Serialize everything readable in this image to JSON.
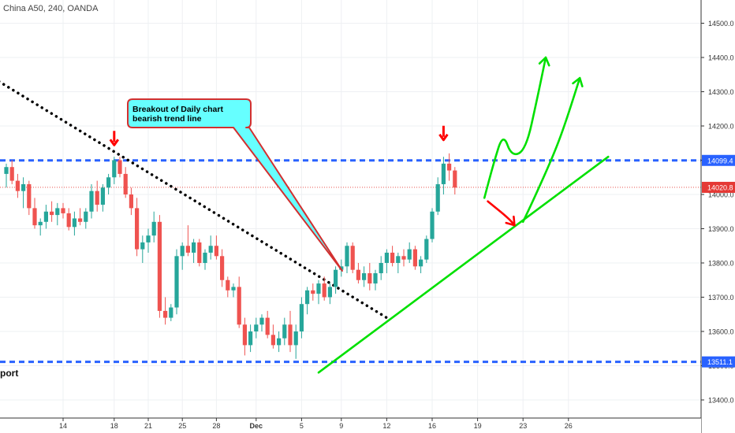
{
  "header": {
    "symbol_info": "China A50, 240, OANDA"
  },
  "annotations": {
    "callout": [
      "Breakout of Daily chart",
      "bearish trend line"
    ],
    "support_label": "port"
  },
  "colors": {
    "up": "#26a69a",
    "down": "#ef5350",
    "level": "#2962ff",
    "trend": "#00e000",
    "callout_fill": "#66ffff",
    "callout_border": "#d32f2f",
    "arrow_red": "#ff0000",
    "last_price": "#e53935"
  },
  "chart_data": {
    "type": "candlestick",
    "title": "China A50, 240, OANDA",
    "ylim": [
      13360,
      14560
    ],
    "y_ticks": [
      "14500.0",
      "14400.0",
      "14300.0",
      "14200.0",
      "14100.0",
      "14000.0",
      "13900.0",
      "13800.0",
      "13700.0",
      "13600.0",
      "13500.0",
      "13400.0"
    ],
    "y_tick_values": [
      14500,
      14400,
      14300,
      14200,
      14100,
      14000,
      13900,
      13800,
      13700,
      13600,
      13500,
      13400
    ],
    "x_ticks": [
      "14",
      "18",
      "21",
      "25",
      "28",
      "Dec",
      "5",
      "9",
      "12",
      "16",
      "19",
      "23",
      "26"
    ],
    "x_tick_bars": [
      10,
      19,
      25,
      31,
      37,
      44,
      52,
      59,
      67,
      75,
      83,
      91,
      99
    ],
    "level_labels": [
      {
        "label": "14099.4",
        "value": 14099.4,
        "kind": "resistance"
      },
      {
        "label": "14020.8",
        "value": 14020.8,
        "kind": "last"
      },
      {
        "label": "13511.1",
        "value": 13511.1,
        "kind": "support"
      }
    ],
    "candles": [
      [
        14060,
        14090,
        14020,
        14080
      ],
      [
        14080,
        14100,
        14030,
        14040
      ],
      [
        14040,
        14060,
        13990,
        14010
      ],
      [
        14010,
        14050,
        13960,
        14030
      ],
      [
        14030,
        14040,
        13940,
        13960
      ],
      [
        13960,
        13990,
        13900,
        13910
      ],
      [
        13910,
        13930,
        13880,
        13920
      ],
      [
        13920,
        13970,
        13900,
        13950
      ],
      [
        13950,
        13980,
        13920,
        13940
      ],
      [
        13940,
        13975,
        13910,
        13960
      ],
      [
        13960,
        13975,
        13930,
        13945
      ],
      [
        13945,
        13960,
        13895,
        13905
      ],
      [
        13905,
        13950,
        13880,
        13930
      ],
      [
        13930,
        13960,
        13910,
        13920
      ],
      [
        13920,
        13960,
        13900,
        13950
      ],
      [
        13950,
        14030,
        13930,
        14010
      ],
      [
        14010,
        14040,
        13950,
        13970
      ],
      [
        13970,
        14030,
        13950,
        14020
      ],
      [
        14020,
        14060,
        14000,
        14050
      ],
      [
        14050,
        14110,
        14030,
        14100
      ],
      [
        14100,
        14110,
        14050,
        14060
      ],
      [
        14060,
        14080,
        13990,
        14000
      ],
      [
        14000,
        14020,
        13940,
        13960
      ],
      [
        13960,
        13990,
        13820,
        13840
      ],
      [
        13840,
        13880,
        13800,
        13860
      ],
      [
        13860,
        13900,
        13830,
        13880
      ],
      [
        13880,
        13950,
        13860,
        13920
      ],
      [
        13920,
        13940,
        13640,
        13660
      ],
      [
        13660,
        13700,
        13620,
        13640
      ],
      [
        13640,
        13680,
        13630,
        13670
      ],
      [
        13670,
        13840,
        13650,
        13820
      ],
      [
        13820,
        13860,
        13780,
        13850
      ],
      [
        13850,
        13910,
        13820,
        13830
      ],
      [
        13830,
        13870,
        13800,
        13860
      ],
      [
        13860,
        13870,
        13790,
        13800
      ],
      [
        13800,
        13840,
        13780,
        13830
      ],
      [
        13830,
        13880,
        13810,
        13850
      ],
      [
        13850,
        13880,
        13810,
        13820
      ],
      [
        13820,
        13840,
        13730,
        13750
      ],
      [
        13750,
        13760,
        13700,
        13720
      ],
      [
        13720,
        13740,
        13700,
        13730
      ],
      [
        13730,
        13760,
        13610,
        13620
      ],
      [
        13620,
        13640,
        13530,
        13560
      ],
      [
        13560,
        13620,
        13540,
        13600
      ],
      [
        13600,
        13640,
        13580,
        13620
      ],
      [
        13620,
        13650,
        13600,
        13640
      ],
      [
        13640,
        13660,
        13580,
        13590
      ],
      [
        13590,
        13620,
        13550,
        13560
      ],
      [
        13560,
        13600,
        13540,
        13580
      ],
      [
        13580,
        13640,
        13560,
        13620
      ],
      [
        13620,
        13660,
        13540,
        13560
      ],
      [
        13560,
        13620,
        13520,
        13600
      ],
      [
        13600,
        13700,
        13580,
        13680
      ],
      [
        13680,
        13730,
        13650,
        13720
      ],
      [
        13720,
        13740,
        13690,
        13710
      ],
      [
        13710,
        13750,
        13680,
        13740
      ],
      [
        13740,
        13760,
        13690,
        13700
      ],
      [
        13700,
        13740,
        13680,
        13730
      ],
      [
        13730,
        13790,
        13710,
        13780
      ],
      [
        13780,
        13810,
        13760,
        13790
      ],
      [
        13790,
        13860,
        13770,
        13850
      ],
      [
        13850,
        13860,
        13770,
        13780
      ],
      [
        13780,
        13800,
        13740,
        13750
      ],
      [
        13750,
        13790,
        13730,
        13770
      ],
      [
        13770,
        13800,
        13720,
        13740
      ],
      [
        13740,
        13780,
        13720,
        13770
      ],
      [
        13770,
        13820,
        13750,
        13800
      ],
      [
        13800,
        13840,
        13770,
        13830
      ],
      [
        13830,
        13850,
        13790,
        13800
      ],
      [
        13800,
        13830,
        13770,
        13820
      ],
      [
        13820,
        13840,
        13790,
        13810
      ],
      [
        13810,
        13860,
        13800,
        13840
      ],
      [
        13840,
        13850,
        13780,
        13790
      ],
      [
        13790,
        13820,
        13770,
        13810
      ],
      [
        13810,
        13880,
        13800,
        13870
      ],
      [
        13870,
        13960,
        13860,
        13950
      ],
      [
        13950,
        14050,
        13940,
        14030
      ],
      [
        14030,
        14110,
        14000,
        14090
      ],
      [
        14090,
        14120,
        14040,
        14070
      ],
      [
        14070,
        14080,
        14000,
        14020
      ]
    ],
    "projection_paths": [
      {
        "name": "",
        "color": "red",
        "points": [
          [
            84.8,
            13980
          ],
          [
            88.5,
            13930
          ],
          [
            89.5,
            13910
          ]
        ],
        "arrow": true
      },
      {
        "name": "",
        "color": "green",
        "points": [
          [
            84.2,
            13990
          ],
          [
            85.8,
            14090
          ],
          [
            87.5,
            14180
          ],
          [
            89.0,
            14110
          ],
          [
            91.5,
            14130
          ],
          [
            93.5,
            14280
          ],
          [
            95.0,
            14400
          ]
        ],
        "arrow": true
      },
      {
        "name": "",
        "color": "green",
        "points": [
          [
            91.0,
            13920
          ],
          [
            93.0,
            13990
          ],
          [
            96.5,
            14120
          ],
          [
            98.5,
            14210
          ],
          [
            101.0,
            14340
          ]
        ],
        "arrow": true
      }
    ],
    "trend_lines": [
      {
        "kind": "bearish",
        "style": "dotted",
        "from": [
          -1.3,
          14330
        ],
        "to": [
          67.0,
          13640
        ]
      },
      {
        "kind": "uptrend",
        "style": "solid",
        "from": [
          55.0,
          13480
        ],
        "to": [
          106.0,
          14110
        ]
      }
    ],
    "markers": [
      {
        "kind": "down-arrow",
        "bar": 19,
        "value": 14135
      },
      {
        "kind": "down-arrow",
        "bar": 77,
        "value": 14150
      }
    ],
    "grid": true
  }
}
